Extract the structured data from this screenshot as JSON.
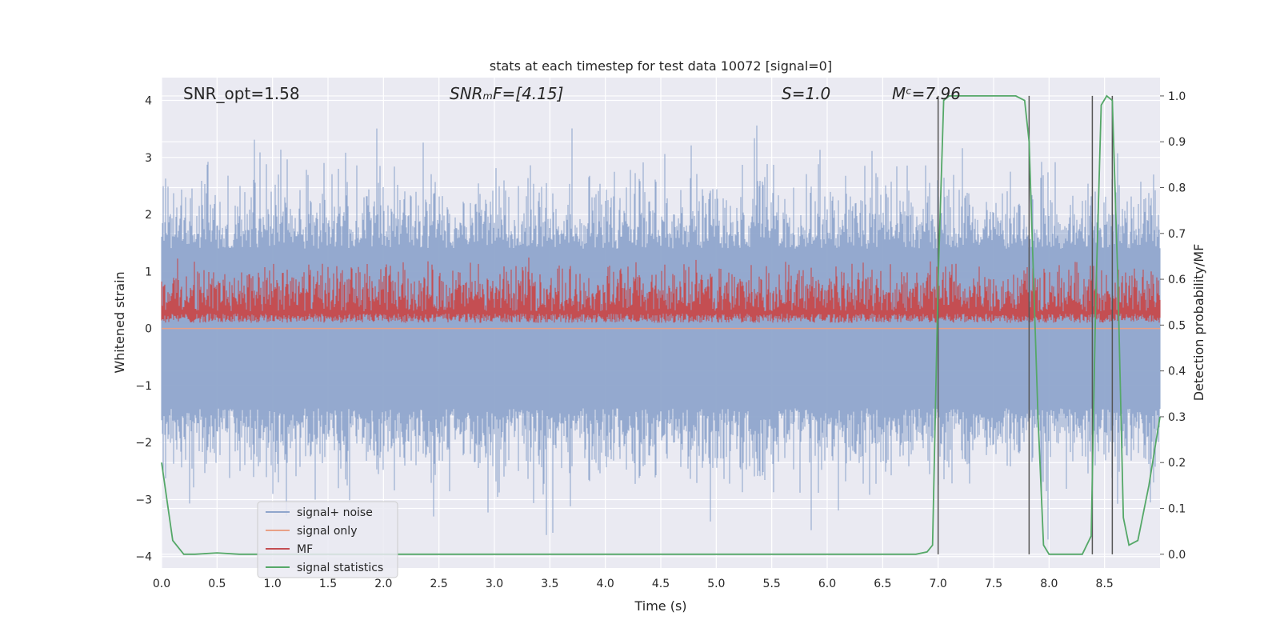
{
  "chart_data": {
    "type": "line",
    "title": "stats at each timestep for test data 10072 [signal=0]",
    "xlabel": "Time (s)",
    "ylabel_left": "Whitened strain",
    "ylabel_right": "Detection probability/MF",
    "xlim": [
      0.0,
      9.0
    ],
    "ylim_left": [
      -4.2,
      4.4
    ],
    "ylim_right": [
      -0.03,
      1.04
    ],
    "grid": true,
    "legend_location": "lower-left",
    "x_ticks": [
      "0.0",
      "0.5",
      "1.0",
      "1.5",
      "2.0",
      "2.5",
      "3.0",
      "3.5",
      "4.0",
      "4.5",
      "5.0",
      "5.5",
      "6.0",
      "6.5",
      "7.0",
      "7.5",
      "8.0",
      "8.5"
    ],
    "y_left_ticks": [
      "4",
      "3",
      "2",
      "1",
      "0",
      "−1",
      "−2",
      "−3",
      "−4"
    ],
    "y_right_ticks": [
      "1.0",
      "0.9",
      "0.8",
      "0.7",
      "0.6",
      "0.5",
      "0.4",
      "0.3",
      "0.2",
      "0.1",
      "0.0"
    ],
    "annotations": [
      {
        "id": "snr-opt",
        "text": "SNR_opt=1.58"
      },
      {
        "id": "snr-mf",
        "text": "SNRₘF=[4.15]"
      },
      {
        "id": "s",
        "text": "S=1.0"
      },
      {
        "id": "mc",
        "text": "Mᶜ=7.96"
      }
    ],
    "series": [
      {
        "name": "signal+ noise",
        "color": "#8fa5cc",
        "axis": "left",
        "description": "whitened strain noise, about ±2 with peaks near ±4"
      },
      {
        "name": "signal only",
        "color": "#e8a187",
        "axis": "left",
        "value": 0.0
      },
      {
        "name": "MF",
        "color": "#c44e52",
        "axis": "right",
        "range": [
          0.5,
          0.65
        ]
      },
      {
        "name": "signal statistics",
        "color": "#55a868",
        "axis": "right",
        "x": [
          0.0,
          0.1,
          0.2,
          0.3,
          0.5,
          0.7,
          1.0,
          2.0,
          3.0,
          4.0,
          5.0,
          6.0,
          6.8,
          6.9,
          6.95,
          7.0,
          7.05,
          7.1,
          7.5,
          7.7,
          7.78,
          7.82,
          7.9,
          7.95,
          8.0,
          8.1,
          8.2,
          8.3,
          8.38,
          8.42,
          8.47,
          8.52,
          8.57,
          8.62,
          8.67,
          8.72,
          8.8,
          8.9,
          9.0
        ],
        "y": [
          0.2,
          0.03,
          0.0,
          0.0,
          0.003,
          0.0,
          0.0,
          0.0,
          0.0,
          0.0,
          0.0,
          0.0,
          0.0,
          0.005,
          0.02,
          0.6,
          0.99,
          1.0,
          1.0,
          1.0,
          0.99,
          0.9,
          0.3,
          0.02,
          0.0,
          0.0,
          0.0,
          0.0,
          0.04,
          0.55,
          0.98,
          1.0,
          0.99,
          0.6,
          0.08,
          0.02,
          0.03,
          0.15,
          0.3
        ]
      },
      {
        "name": "vertical markers",
        "color": "#555555",
        "axis": "right",
        "x": [
          7.0,
          7.82,
          8.39,
          8.57
        ]
      }
    ]
  },
  "legend": [
    {
      "label": "signal+ noise",
      "color": "#8fa5cc"
    },
    {
      "label": "signal only",
      "color": "#e8a187"
    },
    {
      "label": "MF",
      "color": "#c44e52"
    },
    {
      "label": "signal statistics",
      "color": "#55a868"
    }
  ]
}
